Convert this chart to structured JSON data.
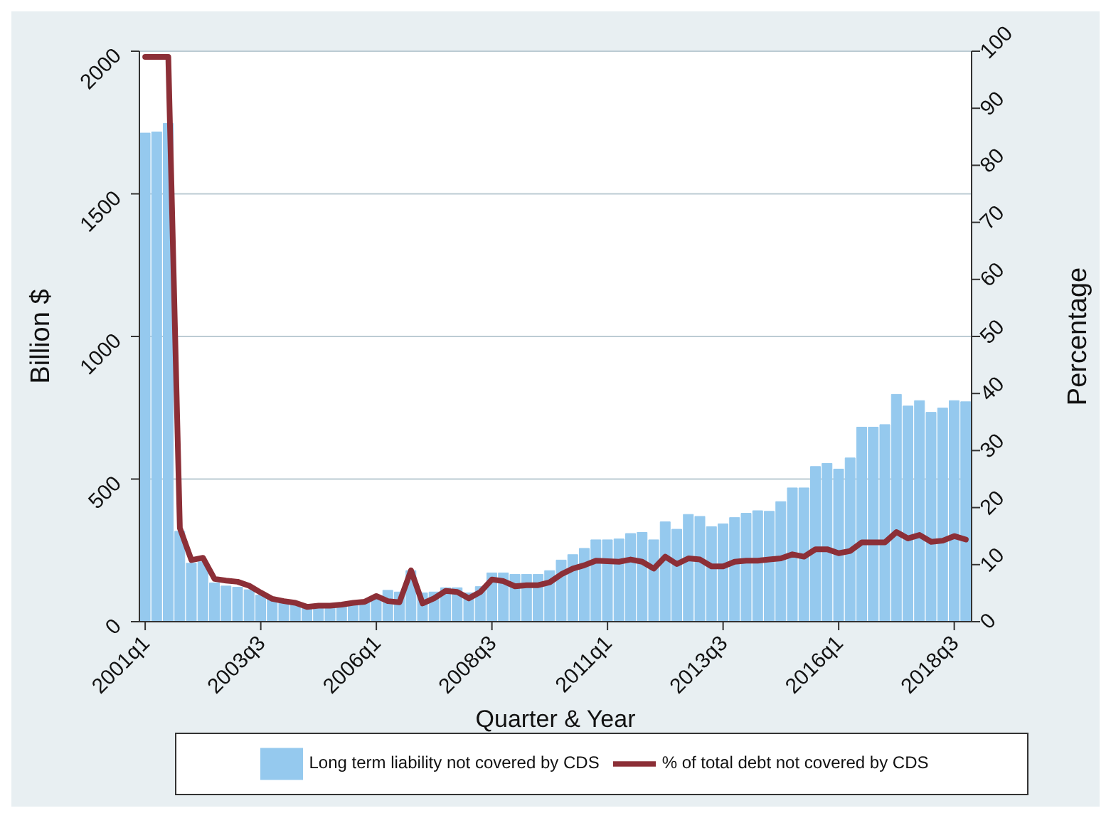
{
  "chart_data": {
    "type": "bar",
    "xlabel": "Quarter & Year",
    "ylabel": "Billion $",
    "y2label": "Percentage",
    "categories": [
      "2001q1",
      null,
      null,
      null,
      null,
      null,
      null,
      null,
      null,
      null,
      "2003q3",
      null,
      null,
      null,
      null,
      null,
      null,
      null,
      null,
      null,
      "2006q1",
      null,
      null,
      null,
      null,
      null,
      null,
      null,
      null,
      null,
      "2008q3",
      null,
      null,
      null,
      null,
      null,
      null,
      null,
      null,
      null,
      "2011q1",
      null,
      null,
      null,
      null,
      null,
      null,
      null,
      null,
      null,
      "2013q3",
      null,
      null,
      null,
      null,
      null,
      null,
      null,
      null,
      null,
      "2016q1",
      null,
      null,
      null,
      null,
      null,
      null,
      null,
      null,
      null,
      "2018q3",
      null
    ],
    "series": [
      {
        "name": "Long term liability not covered by CDS",
        "color": "#95c9ee",
        "values": [
          1713,
          1717,
          1747,
          317,
          205,
          210,
          136,
          125,
          121,
          112,
          93,
          84,
          74,
          65,
          56,
          60,
          60,
          65,
          65,
          74,
          84,
          110,
          104,
          179,
          101,
          104,
          119,
          119,
          101,
          123,
          171,
          171,
          166,
          166,
          166,
          179,
          216,
          235,
          257,
          287,
          287,
          290,
          309,
          313,
          287,
          350,
          324,
          376,
          369,
          333,
          343,
          365,
          380,
          389,
          387,
          421,
          469,
          469,
          544,
          555,
          535,
          574,
          682,
          682,
          691,
          797,
          756,
          775,
          734,
          749,
          775,
          771
        ]
      },
      {
        "type": "line",
        "axis": "y2",
        "name": "% of total debt not covered by CDS",
        "color": "#8c2f37",
        "values": [
          99,
          99,
          99,
          16.4,
          10.8,
          11.2,
          7.5,
          7.2,
          7.0,
          6.3,
          5.1,
          4.0,
          3.6,
          3.3,
          2.6,
          2.8,
          2.8,
          3.0,
          3.3,
          3.5,
          4.5,
          3.6,
          3.4,
          9.0,
          3.2,
          4.1,
          5.4,
          5.2,
          4.1,
          5.2,
          7.4,
          7.1,
          6.2,
          6.4,
          6.4,
          6.9,
          8.3,
          9.3,
          9.9,
          10.7,
          10.6,
          10.5,
          10.9,
          10.5,
          9.3,
          11.4,
          10.1,
          11.1,
          10.9,
          9.7,
          9.7,
          10.5,
          10.7,
          10.7,
          10.9,
          11.1,
          11.8,
          11.4,
          12.7,
          12.7,
          12.0,
          12.4,
          13.9,
          13.9,
          13.9,
          15.7,
          14.6,
          15.2,
          14.0,
          14.2,
          15.0,
          14.4
        ]
      }
    ],
    "ylim": [
      0,
      2000
    ],
    "yticks": [
      0,
      500,
      1000,
      1500,
      2000
    ],
    "y2lim": [
      0,
      100
    ],
    "y2ticks": [
      0,
      10,
      20,
      30,
      40,
      50,
      60,
      70,
      80,
      90,
      100
    ],
    "grid": "y",
    "legend": "bottom"
  }
}
